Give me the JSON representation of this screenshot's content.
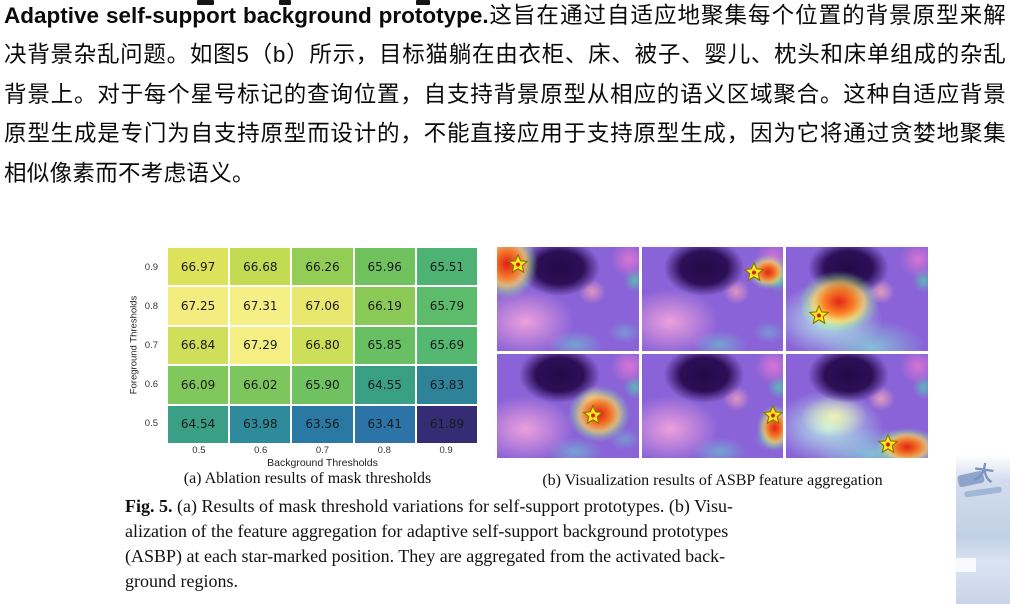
{
  "paragraph": {
    "bold_lead": "Adaptive self-support background prototype.",
    "body_text": "这旨在通过自适应地聚集每个位置的背景原型来解决背景杂乱问题。如图5（b）所示，目标猫躺在由衣柜、床、被子、婴儿、枕头和床单组成的杂乱背景上。对于每个星号标记的查询位置，自支持背景原型从相应的语义区域聚合。这种自适应背景原型生成是专门为自支持原型而设计的，不能直接应用于支持原型生成，因为它将通过贪婪地聚集相似像素而不考虑语义。"
  },
  "chart_data": {
    "type": "heatmap",
    "title": "(a) Ablation results of mask thresholds",
    "xlabel": "Background Thresholds",
    "ylabel": "Foreground Thresholds",
    "x_categories": [
      "0.5",
      "0.6",
      "0.7",
      "0.8",
      "0.9"
    ],
    "y_categories": [
      "0.9",
      "0.8",
      "0.7",
      "0.6",
      "0.5"
    ],
    "values": [
      [
        66.97,
        66.68,
        66.26,
        65.96,
        65.51
      ],
      [
        67.25,
        67.31,
        67.06,
        66.19,
        65.79
      ],
      [
        66.84,
        67.29,
        66.8,
        65.85,
        65.69
      ],
      [
        66.09,
        66.02,
        65.9,
        64.55,
        63.83
      ],
      [
        64.54,
        63.98,
        63.56,
        63.41,
        61.89
      ]
    ],
    "cell_colors": [
      [
        "#dde25b",
        "#c3db52",
        "#93cd55",
        "#70c25f",
        "#4db274"
      ],
      [
        "#f4ec7e",
        "#f6ef86",
        "#eae76e",
        "#8cca57",
        "#5dbc6b"
      ],
      [
        "#d0df59",
        "#f5ee83",
        "#cdde58",
        "#68c063",
        "#55b871"
      ],
      [
        "#80c75c",
        "#7dc65d",
        "#70c261",
        "#3aa084",
        "#2e8398"
      ],
      [
        "#3b9f87",
        "#2f8a9b",
        "#2a79a5",
        "#2c73a7",
        "#352c75"
      ]
    ],
    "value_range": [
      61.89,
      67.31
    ],
    "colormap": "viridis",
    "grid": "white-separators",
    "legend": "none"
  },
  "figure": {
    "panel_b": {
      "caption": "(b) Visualization results of ASBP feature aggregation",
      "marker": "yellow-star",
      "star_color": "#ffe61e",
      "tiles": [
        {
          "id": "tile-1",
          "star": [
            15,
            16
          ],
          "hot": [
            7,
            16
          ],
          "hot_size": [
            62,
            70
          ],
          "tint": "purple"
        },
        {
          "id": "tile-2",
          "star": [
            79,
            24
          ],
          "hot": [
            89,
            24
          ],
          "hot_size": [
            40,
            34
          ],
          "tint": "purple"
        },
        {
          "id": "tile-3",
          "star": [
            23,
            65
          ],
          "hot": [
            37,
            53
          ],
          "hot_size": [
            80,
            62
          ],
          "tint": "cyan"
        },
        {
          "id": "tile-4",
          "star": [
            68,
            59
          ],
          "hot": [
            72,
            58
          ],
          "hot_size": [
            62,
            56
          ],
          "tint": "purple"
        },
        {
          "id": "tile-5",
          "star": [
            93,
            59
          ],
          "hot": [
            94,
            71
          ],
          "hot_size": [
            36,
            46
          ],
          "tint": "purple"
        },
        {
          "id": "tile-6",
          "star": [
            72,
            87
          ],
          "hot": [
            85,
            89
          ],
          "hot_size": [
            64,
            38
          ],
          "tint": "cyan"
        }
      ]
    },
    "caption": {
      "label": "Fig. 5.",
      "text": " (a) Results of mask threshold variations for self-support prototypes. (b) Visu-\nalization of the feature aggregation for adaptive self-support background prototypes\n(ASBP) at each star-marked position. They are aggregated from the activated back-\nground regions."
    }
  },
  "watermark": {
    "text": "大",
    "color": "#8ba3cc"
  }
}
